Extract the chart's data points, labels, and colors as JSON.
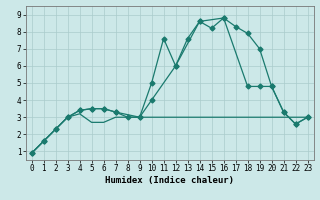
{
  "xlabel": "Humidex (Indice chaleur)",
  "background_color": "#cce8e8",
  "grid_color": "#aacccc",
  "line_color": "#1a7a6e",
  "xlim": [
    -0.5,
    23.5
  ],
  "ylim": [
    0.5,
    9.5
  ],
  "yticks": [
    1,
    2,
    3,
    4,
    5,
    6,
    7,
    8,
    9
  ],
  "xticks": [
    0,
    1,
    2,
    3,
    4,
    5,
    6,
    7,
    8,
    9,
    10,
    11,
    12,
    13,
    14,
    15,
    16,
    17,
    18,
    19,
    20,
    21,
    22,
    23
  ],
  "series1_x": [
    0,
    1,
    2,
    3,
    4,
    5,
    6,
    7,
    8,
    9,
    10,
    11,
    12,
    13,
    14,
    15,
    16,
    17,
    18,
    19,
    20,
    21,
    22,
    23
  ],
  "series1_y": [
    0.9,
    1.6,
    2.3,
    3.0,
    3.4,
    3.5,
    3.5,
    3.3,
    3.0,
    3.0,
    5.0,
    7.6,
    6.0,
    7.6,
    8.6,
    8.2,
    8.8,
    8.3,
    7.9,
    7.0,
    4.8,
    3.3,
    2.6,
    3.0
  ],
  "series2_x": [
    0,
    1,
    2,
    3,
    4,
    5,
    6,
    7,
    8,
    9,
    10,
    11,
    12,
    13,
    14,
    15,
    16,
    17,
    18,
    19,
    20,
    21,
    22,
    23
  ],
  "series2_y": [
    0.9,
    1.6,
    2.3,
    3.0,
    3.2,
    2.7,
    2.7,
    3.0,
    3.0,
    3.0,
    3.0,
    3.0,
    3.0,
    3.0,
    3.0,
    3.0,
    3.0,
    3.0,
    3.0,
    3.0,
    3.0,
    3.0,
    3.0,
    3.0
  ],
  "series3_x": [
    0,
    1,
    2,
    3,
    4,
    5,
    6,
    7,
    9,
    10,
    12,
    14,
    16,
    18,
    19,
    20,
    21,
    22,
    23
  ],
  "series3_y": [
    0.9,
    1.6,
    2.3,
    3.0,
    3.4,
    3.5,
    3.5,
    3.3,
    3.0,
    4.0,
    6.0,
    8.6,
    8.8,
    4.8,
    4.8,
    4.8,
    3.3,
    2.6,
    3.0
  ],
  "marker": "D",
  "markersize": 2.5,
  "linewidth": 0.9
}
